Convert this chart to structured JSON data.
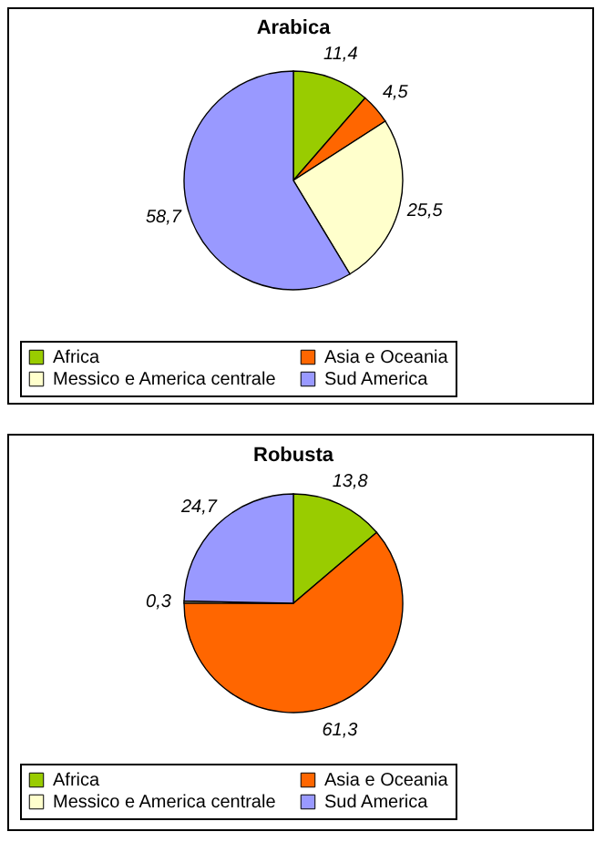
{
  "chart_data": [
    {
      "type": "pie",
      "title": "Arabica",
      "categories": [
        "Africa",
        "Asia e Oceania",
        "Messico e America centrale",
        "Sud America"
      ],
      "values": [
        11.4,
        4.5,
        25.5,
        58.7
      ],
      "value_labels": [
        "11,4",
        "4,5",
        "25,5",
        "58,7"
      ],
      "colors": [
        "#99cc00",
        "#ff6600",
        "#ffffcc",
        "#9999ff"
      ],
      "legend": "bottom"
    },
    {
      "type": "pie",
      "title": "Robusta",
      "categories": [
        "Africa",
        "Asia e Oceania",
        "Messico e America centrale",
        "Sud America"
      ],
      "values": [
        13.8,
        61.3,
        0.3,
        24.7
      ],
      "value_labels": [
        "13,8",
        "61,3",
        "0,3",
        "24,7"
      ],
      "colors": [
        "#99cc00",
        "#ff6600",
        "#ffffcc",
        "#9999ff"
      ],
      "legend": "bottom"
    }
  ]
}
